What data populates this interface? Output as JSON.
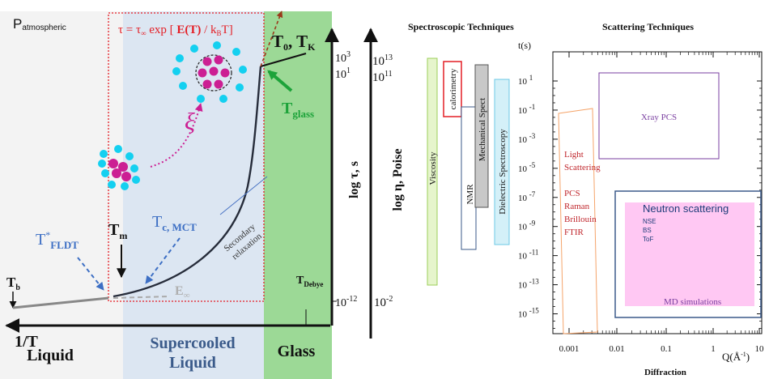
{
  "left": {
    "p_atmospheric": "P",
    "p_sub": "atmospheric",
    "equation": {
      "tau": "τ = τ",
      "inf_sub": "∞",
      "exp_open": " exp [ ",
      "ET": "E(T)",
      "div_k": " / k",
      "B": "B",
      "T_close": "T]"
    },
    "t0tk": {
      "T0": "T",
      "sub0": "0",
      "comma": ", T",
      "subK": "K"
    },
    "tglass": {
      "T": "T",
      "sub": "glass"
    },
    "xi": "ξ",
    "tm": {
      "T": "T",
      "sub": "m"
    },
    "tc": {
      "T": "T",
      "sub": "c, MCT"
    },
    "tfldt": {
      "T": "T",
      "sup": "*",
      "sub": "FLDT"
    },
    "tb": {
      "T": "T",
      "sub": "b"
    },
    "einf": {
      "E": "E",
      "sub": "∞"
    },
    "secondary": [
      "Secondary",
      "relaxation"
    ],
    "tdebye": {
      "T": "T",
      "sub": "Debye"
    },
    "axis_inv_T": "1/T",
    "log_tau": "log τ, s",
    "log_eta": "log η, Poise",
    "tau_ticks": {
      "b10": "10",
      "e3": "3",
      "e1": "1",
      "em12": "-12"
    },
    "eta_ticks": {
      "b10": "10",
      "e13": "13",
      "e11": "11",
      "em2": "-2"
    },
    "regions": {
      "liquid": "Liquid",
      "supercooled": [
        "Supercooled",
        "Liquid"
      ],
      "glass": "Glass"
    }
  },
  "right": {
    "spectroscopic_title": "Spectroscopic Techniques",
    "scattering_title": "Scattering Techniques",
    "ts_label": "t(s)",
    "y_tick_exps": [
      "1",
      "-1",
      "-3",
      "-5",
      "-7",
      "-9",
      "-11",
      "-13",
      "-15"
    ],
    "x_ticks": [
      "0.001",
      "0.01",
      "0.1",
      "1",
      "10"
    ],
    "q_label": "Q(Å",
    "q_sup": "-1",
    "q_close": ")",
    "diffraction": "Diffraction",
    "bars": {
      "viscosity": "Viscosity",
      "calorimetry": "calorimetry",
      "nmr": "NMR",
      "mechanical": "Mechanical Spect",
      "dielectric": "Dielectric Spectroscopy"
    },
    "xray": "Xray PCS",
    "light": [
      "Light",
      "Scattering",
      "PCS",
      "Raman",
      "Brillouin",
      "FTIR"
    ],
    "neutron_title": "Neutron scattering",
    "neutron_items": [
      "NSE",
      "BS",
      "ToF"
    ],
    "md": "MD simulations"
  },
  "colors": {
    "liquid_bg": "#f3f3f3",
    "supercooled_bg": "#dce6f2",
    "glass_bg": "#9cd996",
    "red": "#e41e25",
    "green_arrow": "#1da33a",
    "magenta": "#cc1f93",
    "cyan": "#14d0f0",
    "label_blue": "#3d6fc4",
    "dark_red_text": "#c0272d",
    "viscosity_fill": "#e6f5cc",
    "dielectric_fill": "#d4f0f8",
    "mechanical_fill": "#c8c8c8",
    "xray_border": "#7a3fa0",
    "light_border": "#f5a46a",
    "neutron_border": "#3b5a8a",
    "md_fill": "#ffc8f3"
  }
}
